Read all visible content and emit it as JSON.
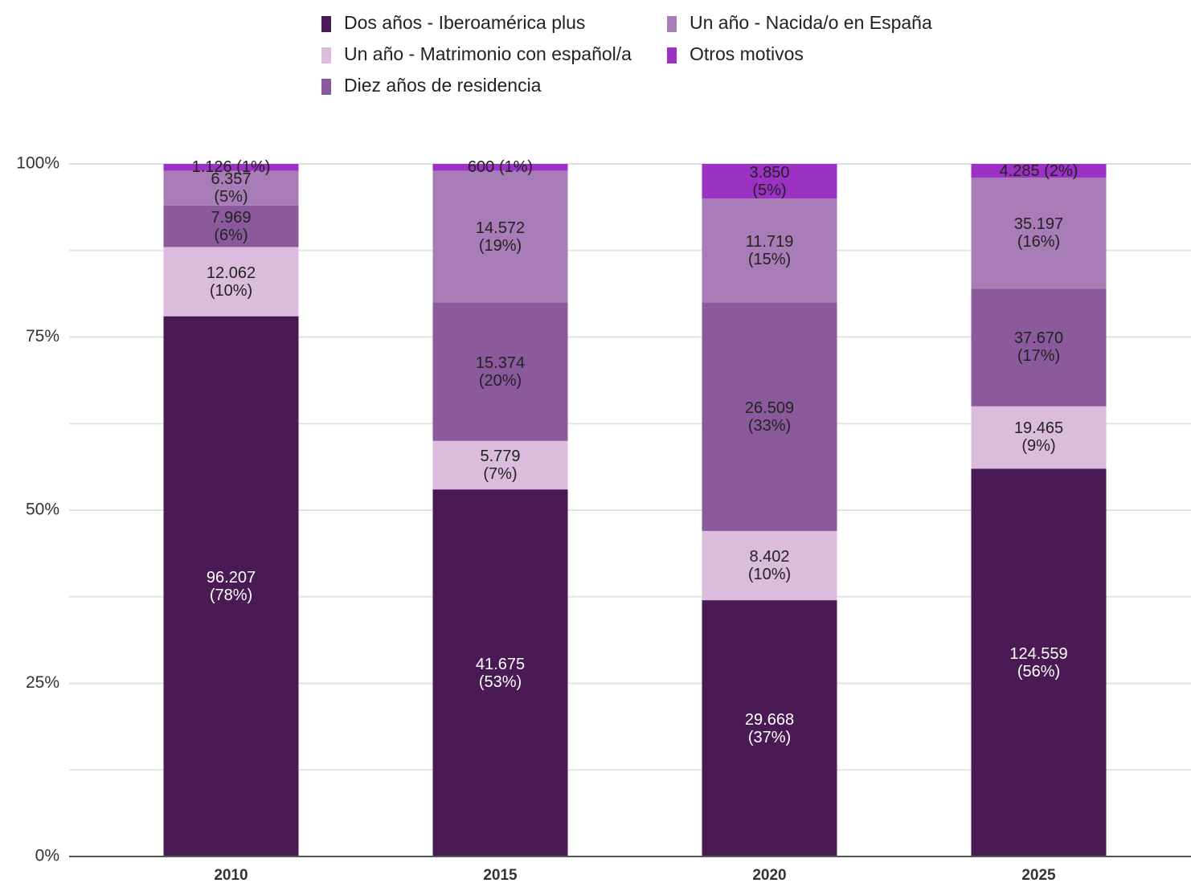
{
  "chart_data": {
    "type": "stacked_bar_100",
    "categories": [
      "2010",
      "2015",
      "2020",
      "2025"
    ],
    "series": [
      {
        "name": "Dos años - Iberoamérica plus",
        "color": "#4a1a55",
        "values": [
          78,
          53,
          37,
          56
        ],
        "value_labels": [
          "96.207 (78%)",
          "41.675 (53%)",
          "29.668 (37%)",
          "124.559 (56%)"
        ]
      },
      {
        "name": "Un año - Matrimonio con español/a",
        "color": "#dcbcdc",
        "values": [
          10,
          7,
          10,
          9
        ],
        "value_labels": [
          "12.062 (10%)",
          "5.779 (7%)",
          "8.402 (10%)",
          "19.465 (9%)"
        ]
      },
      {
        "name": "Diez años de residencia",
        "color": "#8a5a9c",
        "values": [
          6,
          20,
          33,
          17
        ],
        "value_labels": [
          "7.969 (6%)",
          "15.374 (20%)",
          "26.509 (33%)",
          "37.670 (17%)"
        ]
      },
      {
        "name": "Un año - Nacida/o en España",
        "color": "#a87cb6",
        "values": [
          5,
          19,
          15,
          16
        ],
        "value_labels": [
          "6.357 (5%)",
          "14.572 (19%)",
          "11.719 (15%)",
          "35.197 (16%)"
        ]
      },
      {
        "name": "Otros motivos",
        "color": "#9b32c4",
        "values": [
          1,
          1,
          5,
          2
        ],
        "value_labels": [
          "1.126 (1%)",
          "600 (1%)",
          "3.850 (5%)",
          "4.285 (2%)"
        ]
      }
    ],
    "ylim": [
      0,
      100
    ],
    "yticks": [
      {
        "value": 0,
        "label": "0%"
      },
      {
        "value": 25,
        "label": "25%"
      },
      {
        "value": 50,
        "label": "50%"
      },
      {
        "value": 75,
        "label": "75%"
      },
      {
        "value": 100,
        "label": "100%"
      }
    ],
    "minor_yticks": [
      12.5,
      37.5,
      62.5,
      87.5
    ],
    "grid": true,
    "legend": "top"
  }
}
